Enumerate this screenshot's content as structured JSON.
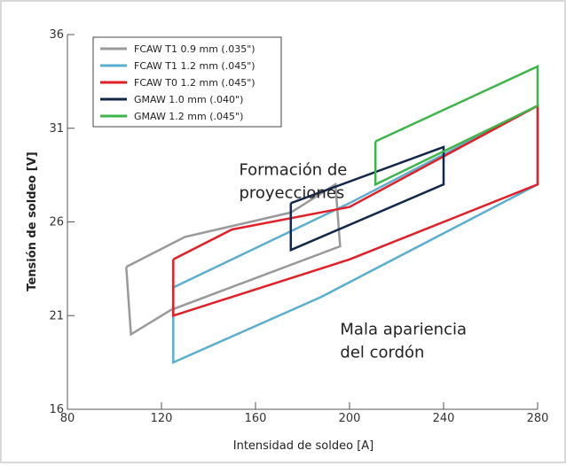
{
  "chart_data": {
    "type": "line",
    "xlabel": "Intensidad de soldeo [A]",
    "ylabel": "Tensión de soldeo [V]",
    "xlim": [
      80,
      280
    ],
    "ylim": [
      16,
      36
    ],
    "xticks": [
      "80",
      "120",
      "160",
      "200",
      "240",
      "280"
    ],
    "yticks": [
      "16",
      "21",
      "26",
      "31",
      "36"
    ],
    "grid": false,
    "legend_position": "top-left",
    "series": [
      {
        "legend": "FCAW T1   0.9 mm  (.035\")",
        "color": "#999999",
        "points": [
          [
            105,
            23.6
          ],
          [
            130,
            25.2
          ],
          [
            175,
            26.5
          ],
          [
            194,
            28.0
          ],
          [
            196,
            24.7
          ],
          [
            124,
            21.3
          ],
          [
            107,
            20.0
          ],
          [
            105,
            23.6
          ]
        ]
      },
      {
        "legend": "FCAW T1   1.2 mm  (.045\")",
        "color": "#5aaed0",
        "points": [
          [
            125,
            22.5
          ],
          [
            200,
            27.0
          ],
          [
            280,
            32.2
          ],
          [
            280,
            28.0
          ],
          [
            188,
            22.0
          ],
          [
            125,
            18.5
          ],
          [
            125,
            22.5
          ]
        ]
      },
      {
        "legend": "FCAW T0   1.2 mm  (.045\")",
        "color": "#e21f26",
        "points": [
          [
            125,
            24.0
          ],
          [
            150,
            25.6
          ],
          [
            200,
            26.8
          ],
          [
            280,
            32.2
          ],
          [
            280,
            28.0
          ],
          [
            200,
            24.0
          ],
          [
            125,
            21.0
          ],
          [
            125,
            24.0
          ]
        ]
      },
      {
        "legend": "GMAW       1.0 mm  (.040\")",
        "color": "#13274a",
        "points": [
          [
            175,
            27.0
          ],
          [
            240,
            30.0
          ],
          [
            240,
            28.0
          ],
          [
            175,
            24.5
          ],
          [
            175,
            27.0
          ]
        ]
      },
      {
        "legend": "GMAW       1.2 mm  (.045\")",
        "color": "#3db54a",
        "points": [
          [
            211,
            30.3
          ],
          [
            280,
            34.3
          ],
          [
            280,
            32.2
          ],
          [
            211,
            28.0
          ],
          [
            211,
            30.3
          ]
        ]
      }
    ],
    "annotations": [
      {
        "lines": [
          "Formación de",
          "proyecciones"
        ],
        "x": 153,
        "y": 28.5
      },
      {
        "lines": [
          "Mala apariencia",
          "del cordón"
        ],
        "x": 196,
        "y": 20.0
      }
    ]
  }
}
